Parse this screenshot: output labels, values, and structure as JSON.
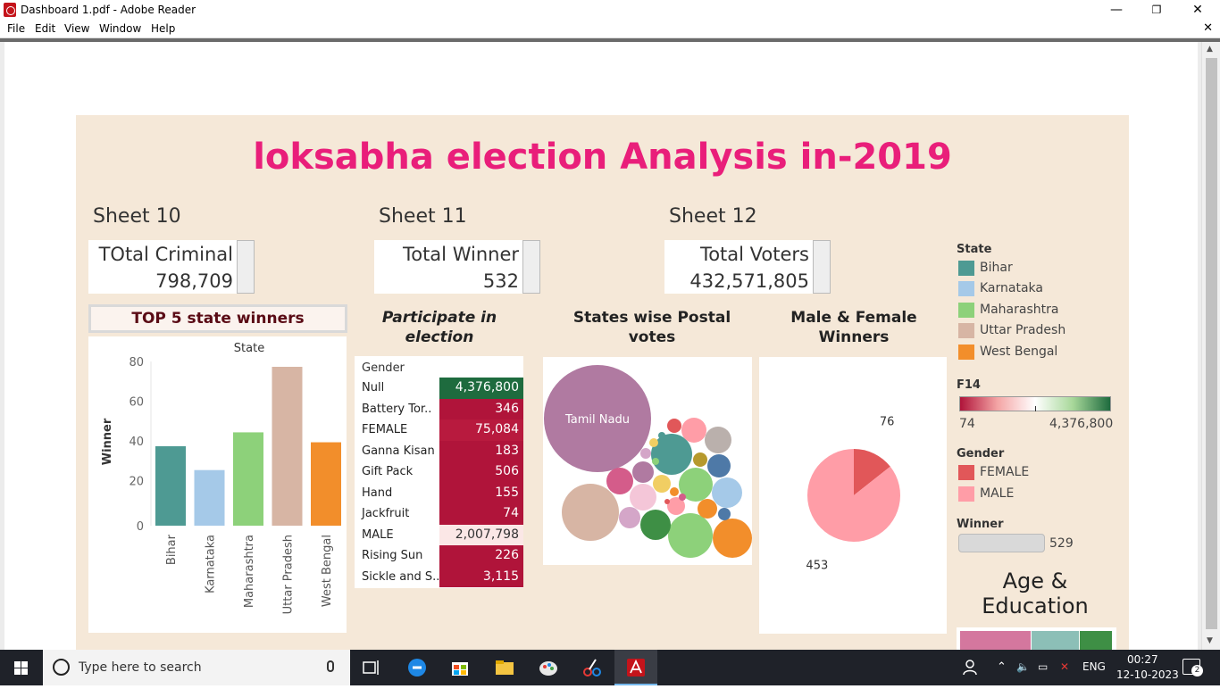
{
  "window": {
    "title": "Dashboard 1.pdf - Adobe Reader",
    "minimize": "—",
    "maximize": "❐",
    "close": "✕"
  },
  "menu": {
    "items": [
      "File",
      "Edit",
      "View",
      "Window",
      "Help"
    ],
    "close_doc": "✕"
  },
  "dashboard": {
    "title": "loksabha election Analysis in-2019",
    "sheets": [
      {
        "name": "Sheet 10",
        "label": "TOtal Criminal",
        "value": "798,709"
      },
      {
        "name": "Sheet 11",
        "label": "Total Winner",
        "value": "532"
      },
      {
        "name": "Sheet 12",
        "label": "Total Voters",
        "value": "432,571,805"
      }
    ],
    "top5": {
      "header": "TOP 5 state winners",
      "legend_title": "State",
      "ylabel": "Winner"
    },
    "participate": {
      "header": "Participate in election",
      "column_header": "Gender",
      "rows": [
        {
          "label": "Null",
          "value": "4,376,800",
          "color": "#1e6b3e",
          "text_color": "#ffffff"
        },
        {
          "label": "Battery Tor..",
          "value": "346",
          "color": "#b0143a",
          "text_color": "#ffffff"
        },
        {
          "label": "FEMALE",
          "value": "75,084",
          "color": "#b81a3e",
          "text_color": "#ffffff"
        },
        {
          "label": "Ganna Kisan",
          "value": "183",
          "color": "#b0143a",
          "text_color": "#ffffff"
        },
        {
          "label": "Gift Pack",
          "value": "506",
          "color": "#b0143a",
          "text_color": "#ffffff"
        },
        {
          "label": "Hand",
          "value": "155",
          "color": "#b0143a",
          "text_color": "#ffffff"
        },
        {
          "label": "Jackfruit",
          "value": "74",
          "color": "#b0143a",
          "text_color": "#ffffff"
        },
        {
          "label": "MALE",
          "value": "2,007,798",
          "color": "#fbe7e6",
          "text_color": "#333333"
        },
        {
          "label": "Rising Sun",
          "value": "226",
          "color": "#b0143a",
          "text_color": "#ffffff"
        },
        {
          "label": "Sickle and S..",
          "value": "3,115",
          "color": "#b0143a",
          "text_color": "#ffffff"
        }
      ]
    },
    "postal": {
      "header": "States wise Postal votes",
      "big_label": "Tamil Nadu"
    },
    "gender_winners": {
      "header": "Male & Female Winners"
    },
    "legend": {
      "state_title": "State",
      "states": [
        {
          "name": "Bihar",
          "color": "#4e9a93"
        },
        {
          "name": "Karnataka",
          "color": "#a5c9e8"
        },
        {
          "name": "Maharashtra",
          "color": "#8dd17a"
        },
        {
          "name": "Uttar Pradesh",
          "color": "#d7b5a4"
        },
        {
          "name": "West Bengal",
          "color": "#f28e2b"
        }
      ],
      "f14_title": "F14",
      "f14_min": "74",
      "f14_max": "4,376,800",
      "gender_title": "Gender",
      "genders": [
        {
          "name": "FEMALE",
          "color": "#e15759"
        },
        {
          "name": "MALE",
          "color": "#ff9da7"
        }
      ],
      "winner_title": "Winner",
      "winner_value": "529"
    },
    "age_edu": {
      "header": "Age & Education"
    }
  },
  "chart_data": [
    {
      "type": "bar",
      "title": "TOP 5 state winners",
      "xlabel": "State",
      "ylabel": "Winner",
      "categories": [
        "Bihar",
        "Karnataka",
        "Maharashtra",
        "Uttar Pradesh",
        "West Bengal"
      ],
      "values": [
        40,
        28,
        47,
        80,
        42
      ],
      "colors": [
        "#4e9a93",
        "#a5c9e8",
        "#8dd17a",
        "#d7b5a4",
        "#f28e2b"
      ],
      "yticks": [
        0,
        20,
        40,
        60,
        80
      ],
      "ylim": [
        0,
        80
      ],
      "grid": false
    },
    {
      "type": "pie",
      "title": "Male & Female Winners",
      "labels": [
        "FEMALE",
        "MALE"
      ],
      "values": [
        76,
        453
      ],
      "colors": [
        "#e15759",
        "#ff9da7"
      ]
    }
  ],
  "taskbar": {
    "search_placeholder": "Type here to search",
    "lang": "ENG",
    "time": "00:27",
    "date": "12-10-2023",
    "notif_count": "2"
  }
}
